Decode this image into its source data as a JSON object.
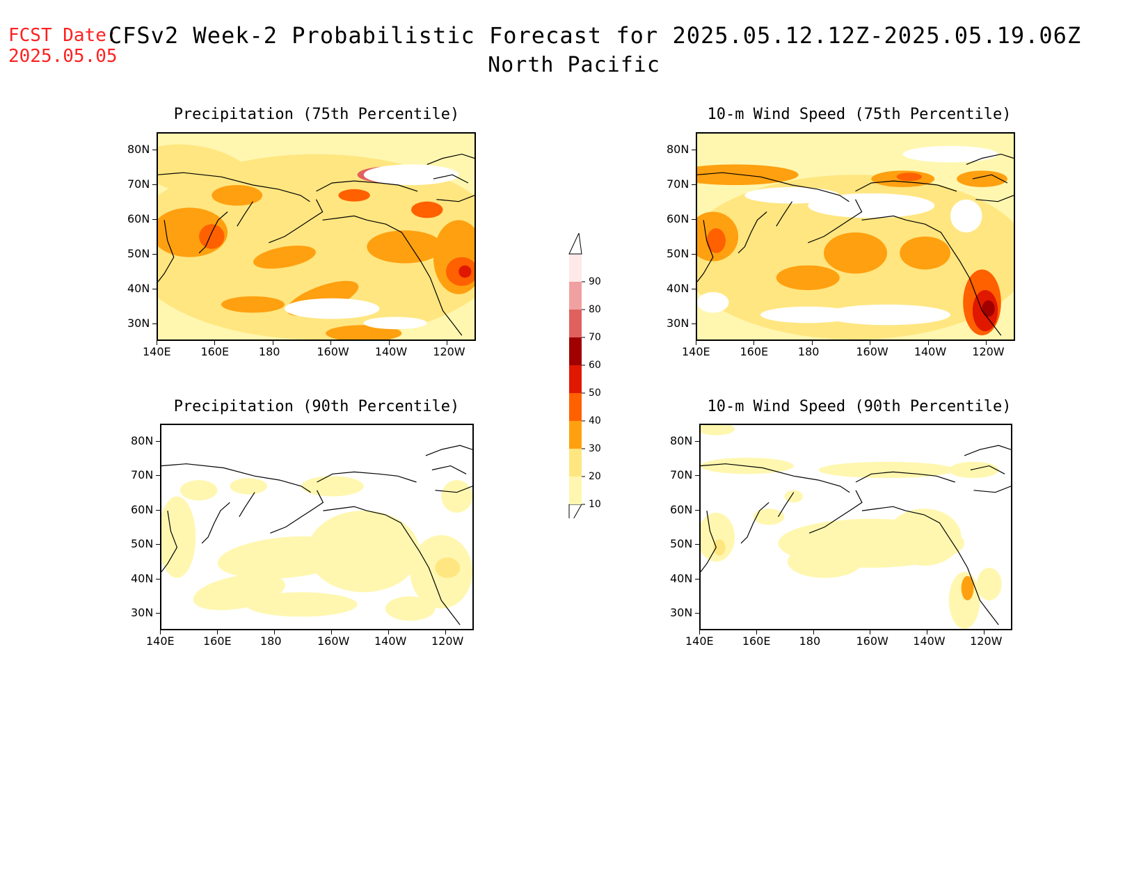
{
  "header": {
    "fcst_line1": "FCST Date:",
    "fcst_line2": "2025.05.05",
    "title_line1": "CFSv2 Week-2 Probabilistic Forecast for 2025.05.12.12Z-2025.05.19.06Z",
    "title_line2": "North Pacific"
  },
  "panels": [
    {
      "id": "precip75",
      "title": "Precipitation (75th Percentile)"
    },
    {
      "id": "wind75",
      "title": "10-m Wind Speed (75th Percentile)"
    },
    {
      "id": "precip90",
      "title": "Precipitation (90th Percentile)"
    },
    {
      "id": "wind90",
      "title": "10-m Wind Speed (90th Percentile)"
    }
  ],
  "axes": {
    "lat_labels": [
      "80N",
      "70N",
      "60N",
      "50N",
      "40N",
      "30N"
    ],
    "lon_labels": [
      "140E",
      "160E",
      "180",
      "160W",
      "140W",
      "120W"
    ]
  },
  "colorbar": {
    "levels": [
      "10",
      "20",
      "30",
      "40",
      "50",
      "60",
      "70",
      "80",
      "90"
    ],
    "colors": [
      "#fff7b0",
      "#ffe680",
      "#ffa010",
      "#ff6000",
      "#e01800",
      "#a00000",
      "#e06060",
      "#f0a0a0",
      "#ffe8e8"
    ]
  }
}
